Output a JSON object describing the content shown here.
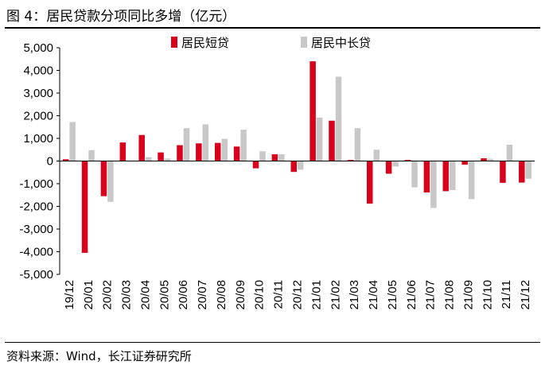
{
  "title": "图 4：居民贷款分项同比多增（亿元）",
  "source": "资料来源：Wind，长江证券研究所",
  "colors": {
    "short": "#D9001B",
    "long": "#C8C8C8",
    "axis": "#000000"
  },
  "chart_data": {
    "type": "bar",
    "title": "居民贷款分项同比多增（亿元）",
    "xlabel": "",
    "ylabel": "亿元",
    "ylim": [
      -5000,
      5000
    ],
    "yticks": [
      5000,
      4000,
      3000,
      2000,
      1000,
      0,
      -1000,
      -2000,
      -3000,
      -4000,
      -5000
    ],
    "ytick_labels": [
      "5,000",
      "4,000",
      "3,000",
      "2,000",
      "1,000",
      "0",
      "-1,000",
      "-2,000",
      "-3,000",
      "-4,000",
      "-5,000"
    ],
    "legend_position": "top",
    "categories": [
      "19/12",
      "20/01",
      "20/02",
      "20/03",
      "20/04",
      "20/05",
      "20/06",
      "20/07",
      "20/08",
      "20/09",
      "20/10",
      "20/11",
      "20/12",
      "21/01",
      "21/02",
      "21/03",
      "21/04",
      "21/05",
      "21/06",
      "21/07",
      "21/08",
      "21/09",
      "21/10",
      "21/11",
      "21/12"
    ],
    "series": [
      {
        "name": "居民短贷",
        "values": [
          80,
          -4050,
          -1550,
          820,
          1150,
          380,
          700,
          780,
          800,
          640,
          -320,
          300,
          -480,
          4400,
          1780,
          50,
          -1880,
          -560,
          50,
          -1390,
          -1330,
          -160,
          120,
          -960,
          -950
        ]
      },
      {
        "name": "居民中长贷",
        "values": [
          1720,
          480,
          -1800,
          0,
          170,
          110,
          1450,
          1620,
          980,
          1380,
          430,
          300,
          -380,
          1920,
          3720,
          1450,
          500,
          -240,
          -1160,
          -2070,
          -1280,
          -1680,
          100,
          720,
          -780
        ]
      }
    ]
  }
}
